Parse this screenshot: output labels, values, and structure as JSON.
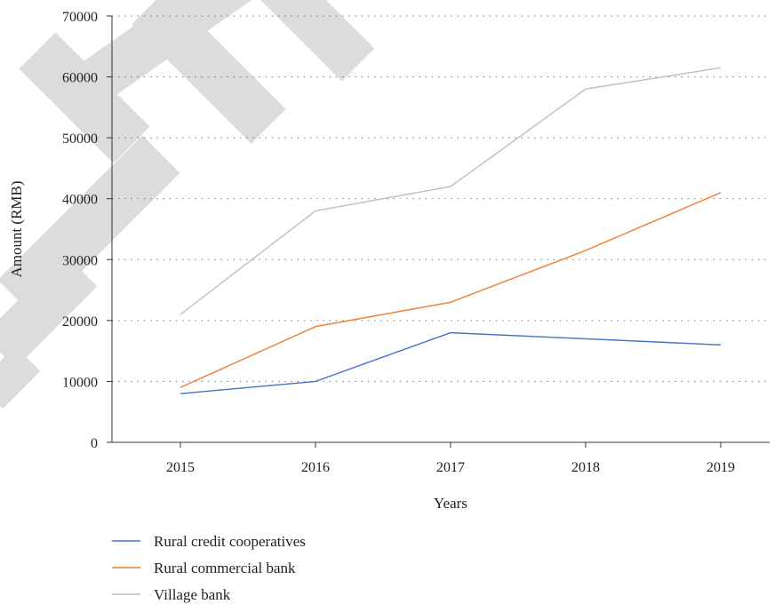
{
  "chart_data": {
    "type": "line",
    "title": "",
    "xlabel": "Years",
    "ylabel": "Amount (RMB)",
    "x": [
      "2015",
      "2016",
      "2017",
      "2018",
      "2019"
    ],
    "ylim": [
      0,
      70000
    ],
    "yticks": [
      0,
      10000,
      20000,
      30000,
      40000,
      50000,
      60000,
      70000
    ],
    "ytick_labels": [
      "0",
      "10000",
      "20000",
      "30000",
      "40000",
      "50000",
      "60000",
      "70000"
    ],
    "grid": "horizontal dotted",
    "legend_position": "bottom-left",
    "series": [
      {
        "name": "Rural credit cooperatives",
        "color": "#4472c4",
        "values": [
          8000,
          10000,
          18000,
          17000,
          16000
        ]
      },
      {
        "name": "Rural commercial bank",
        "color": "#ed7d31",
        "values": [
          9000,
          19000,
          23000,
          31500,
          41000
        ]
      },
      {
        "name": "Village bank",
        "color": "#bfbfbf",
        "values": [
          21000,
          38000,
          42000,
          58000,
          61500
        ]
      }
    ],
    "watermark_color": "#dcdcdc"
  }
}
